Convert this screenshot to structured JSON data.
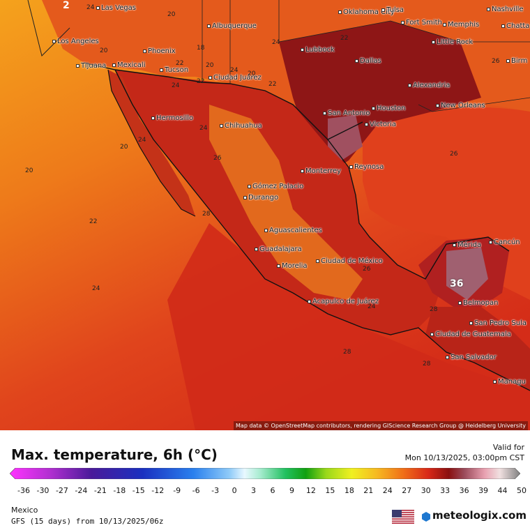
{
  "map": {
    "title": "Max. temperature, 6h (°C)",
    "valid_label": "Valid for",
    "valid_time": "Mon 10/13/2025, 03:00pm CST",
    "region": "Mexico",
    "model_run": "GFS (15 days) from 10/13/2025/06z",
    "brand": "meteologix.com",
    "attribution": "Map data © OpenStreetMap contributors, rendering GIScience Research Group @ Heidelberg University",
    "colors": {
      "ocean_pacific_north": "#f07a1c",
      "ocean_pacific_south": "#d63019",
      "gulf": "#e2401e",
      "land_hot": "#8c1416",
      "land_warm": "#c82a18",
      "highlands": "#f5a11a"
    },
    "scale_ticks": [
      "-36",
      "-30",
      "-27",
      "-24",
      "-21",
      "-18",
      "-15",
      "-12",
      "-9",
      "-6",
      "-3",
      "0",
      "3",
      "6",
      "9",
      "12",
      "15",
      "18",
      "21",
      "24",
      "27",
      "30",
      "33",
      "36",
      "39",
      "44",
      "50"
    ],
    "cities": [
      {
        "name": "Las Vegas"
      },
      {
        "name": "Los Angeles"
      },
      {
        "name": "Tijuana"
      },
      {
        "name": "Mexicali"
      },
      {
        "name": "Phoenix"
      },
      {
        "name": "Tucson"
      },
      {
        "name": "Albuquerque"
      },
      {
        "name": "Oklahoma City"
      },
      {
        "name": "Tulsa"
      },
      {
        "name": "Fort Smith"
      },
      {
        "name": "Memphis"
      },
      {
        "name": "Nashville"
      },
      {
        "name": "Chatta"
      },
      {
        "name": "Little Rock"
      },
      {
        "name": "Birm"
      },
      {
        "name": "Lubbock"
      },
      {
        "name": "Dallas"
      },
      {
        "name": "Ciudad Juárez"
      },
      {
        "name": "Alexandria"
      },
      {
        "name": "Hermosillo"
      },
      {
        "name": "Chihuahua"
      },
      {
        "name": "San Antonio"
      },
      {
        "name": "Houston"
      },
      {
        "name": "New Orleans"
      },
      {
        "name": "Victoria"
      },
      {
        "name": "Monterrey"
      },
      {
        "name": "Reynosa"
      },
      {
        "name": "Gómez Palacio"
      },
      {
        "name": "Durango"
      },
      {
        "name": "Aguascalientes"
      },
      {
        "name": "Guadalajara"
      },
      {
        "name": "Mérida"
      },
      {
        "name": "Cancún"
      },
      {
        "name": "Morelia"
      },
      {
        "name": "Ciudad de México"
      },
      {
        "name": "Acapulco de Juárez"
      },
      {
        "name": "Belmopan"
      },
      {
        "name": "San Pedro Sula"
      },
      {
        "name": "Ciudad de Guatemala"
      },
      {
        "name": "San Salvador"
      },
      {
        "name": "Managu"
      }
    ],
    "isolines": [
      "2",
      "24",
      "20",
      "18",
      "20",
      "20",
      "24",
      "22",
      "24",
      "22",
      "24",
      "20",
      "22",
      "22",
      "26",
      "20",
      "24",
      "26",
      "24",
      "26",
      "28",
      "20",
      "22",
      "24",
      "28",
      "26",
      "28",
      "24",
      "28",
      "36"
    ]
  }
}
